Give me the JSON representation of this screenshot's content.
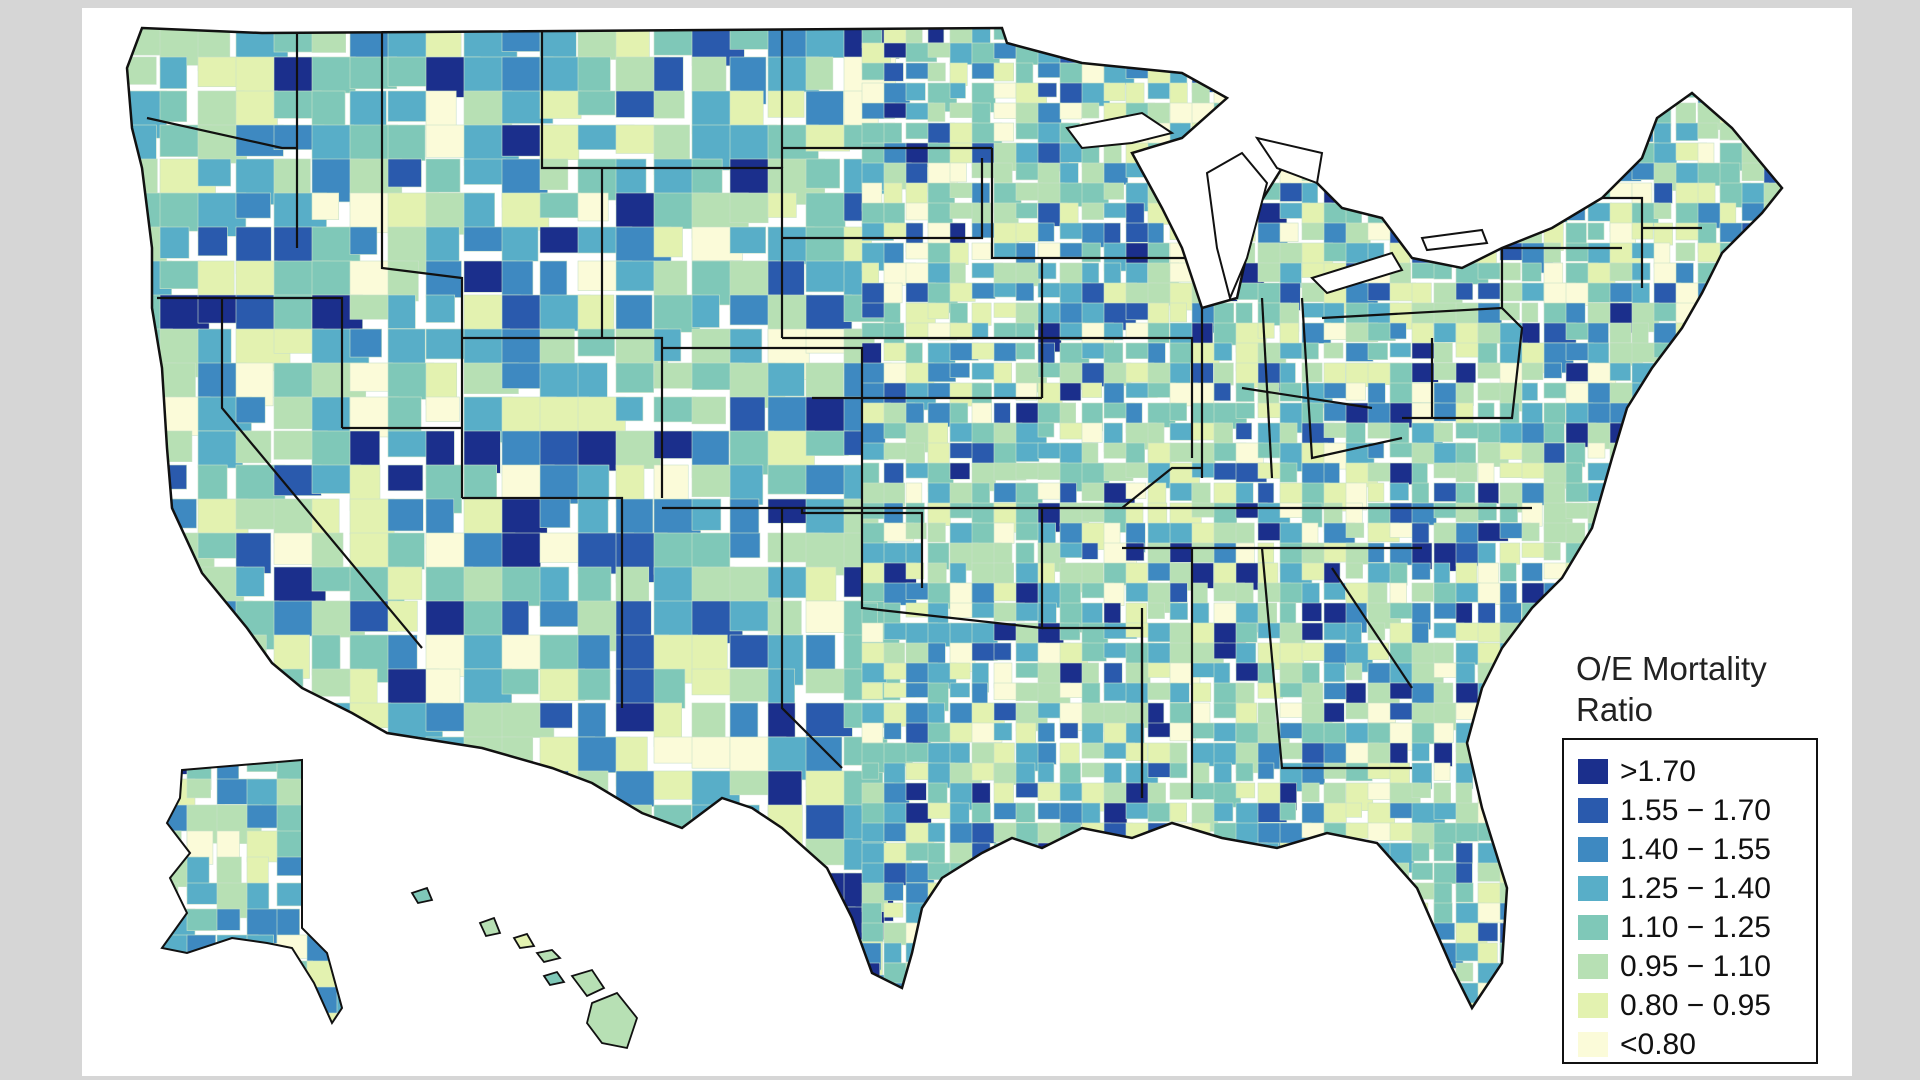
{
  "legend": {
    "title_line1": "O/E Mortality",
    "title_line2": "Ratio",
    "items": [
      {
        "label": ">1.70",
        "color": "#1b2f8c"
      },
      {
        "label": "1.55 − 1.70",
        "color": "#2a5aad"
      },
      {
        "label": "1.40 − 1.55",
        "color": "#3e89c1"
      },
      {
        "label": "1.25 − 1.40",
        "color": "#58aec8"
      },
      {
        "label": "1.10 − 1.25",
        "color": "#7fc8b8"
      },
      {
        "label": "0.95 − 1.10",
        "color": "#b7e0b4"
      },
      {
        "label": "0.80 − 0.95",
        "color": "#e3f2b0"
      },
      {
        "label": "<0.80",
        "color": "#fbfbd9"
      }
    ]
  },
  "map": {
    "regions": [
      "Contiguous United States",
      "Alaska",
      "Hawaii"
    ],
    "unit": "county"
  }
}
